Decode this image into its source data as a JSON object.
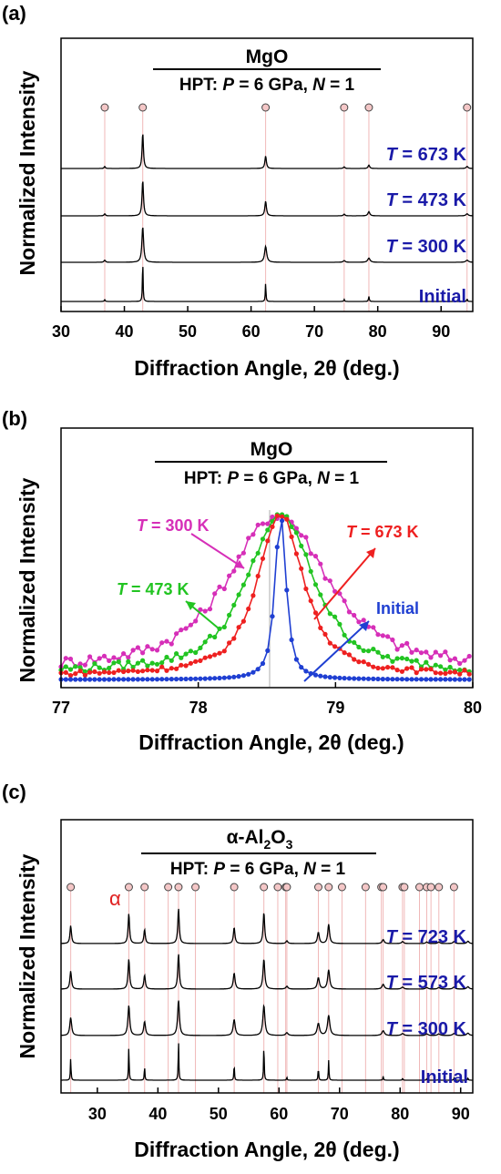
{
  "chart_data": [
    {
      "type": "line",
      "panel": "(a)",
      "title": "MgO",
      "subtitle": {
        "prefix": "HPT: ",
        "p_var": "P",
        "p_val": " = 6 GPa, ",
        "n_var": "N",
        "n_val": " = 1"
      },
      "xlabel": "Diffraction Angle, 2θ (deg.)",
      "ylabel": "Normalized Intensity",
      "xlim": [
        30,
        95
      ],
      "xticks": [
        30,
        40,
        50,
        60,
        70,
        80,
        90
      ],
      "reference_peaks": [
        36.9,
        42.9,
        62.3,
        74.7,
        78.6,
        94.1
      ],
      "series": [
        {
          "name": "Initial",
          "label_text": "Initial",
          "color": "#1a1aa8",
          "peaks": [
            [
              36.9,
              0.05,
              0.15
            ],
            [
              42.9,
              1.0,
              0.12
            ],
            [
              62.3,
              0.45,
              0.12
            ],
            [
              74.7,
              0.05,
              0.15
            ],
            [
              78.6,
              0.12,
              0.15
            ],
            [
              94.1,
              0.06,
              0.15
            ]
          ]
        },
        {
          "name": "T = 300 K",
          "label_var": "T",
          "label_val": " = 300 K",
          "color": "#1a1aa8",
          "peaks": [
            [
              36.9,
              0.05,
              0.3
            ],
            [
              42.9,
              0.85,
              0.32
            ],
            [
              62.3,
              0.38,
              0.4
            ],
            [
              74.7,
              0.04,
              0.4
            ],
            [
              78.6,
              0.1,
              0.45
            ],
            [
              94.1,
              0.05,
              0.5
            ]
          ]
        },
        {
          "name": "T = 473 K",
          "label_var": "T",
          "label_val": " = 473 K",
          "color": "#1a1aa8",
          "peaks": [
            [
              36.9,
              0.05,
              0.25
            ],
            [
              42.9,
              0.85,
              0.27
            ],
            [
              62.3,
              0.35,
              0.3
            ],
            [
              74.7,
              0.04,
              0.3
            ],
            [
              78.6,
              0.1,
              0.35
            ],
            [
              94.1,
              0.05,
              0.4
            ]
          ]
        },
        {
          "name": "T = 673 K",
          "label_var": "T",
          "label_val": " = 673 K",
          "color": "#1a1aa8",
          "peaks": [
            [
              36.9,
              0.05,
              0.22
            ],
            [
              42.9,
              0.85,
              0.25
            ],
            [
              62.3,
              0.3,
              0.28
            ],
            [
              74.7,
              0.04,
              0.28
            ],
            [
              78.6,
              0.08,
              0.3
            ],
            [
              94.1,
              0.05,
              0.35
            ]
          ]
        }
      ]
    },
    {
      "type": "line",
      "panel": "(b)",
      "title": "MgO",
      "subtitle": {
        "prefix": "HPT: ",
        "p_var": "P",
        "p_val": " = 6 GPa, ",
        "n_var": "N",
        "n_val": " = 1"
      },
      "xlabel": "Diffraction Angle, 2θ (deg.)",
      "ylabel": "Normalized Intensity",
      "xlim": [
        77,
        80
      ],
      "xticks": [
        77,
        78,
        79,
        80
      ],
      "series": [
        {
          "name": "Initial",
          "label_text": "Initial",
          "color": "#1f3fd2",
          "center": 78.6,
          "fwhm": 0.1,
          "base": 0.01,
          "noise": 0.0,
          "tail": 0.05
        },
        {
          "name": "T = 300 K",
          "label_var": "T",
          "label_val": " = 300 K",
          "color": "#d62fb8",
          "center": 78.58,
          "fwhm": 0.9,
          "base": 0.06,
          "noise": 0.035,
          "tail": 0.25
        },
        {
          "name": "T = 473 K",
          "label_var": "T",
          "label_val": " = 473 K",
          "color": "#22c422",
          "center": 78.6,
          "fwhm": 0.6,
          "base": 0.05,
          "noise": 0.025,
          "tail": 0.15
        },
        {
          "name": "T = 673 K",
          "label_var": "T",
          "label_val": " = 673 K",
          "color": "#ee2020",
          "center": 78.6,
          "fwhm": 0.42,
          "base": 0.035,
          "noise": 0.015,
          "tail": 0.1
        }
      ]
    },
    {
      "type": "line",
      "panel": "(c)",
      "title": {
        "prefix": "α-Al",
        "sub1": "2",
        "mid": "O",
        "sub2": "3"
      },
      "subtitle": {
        "prefix": "HPT: ",
        "p_var": "P",
        "p_val": " = 6 GPa, ",
        "n_var": "N",
        "n_val": " = 1"
      },
      "alpha_marker": "α",
      "xlabel": "Diffraction Angle, 2θ (deg.)",
      "ylabel": "Normalized Intensity",
      "xlim": [
        24,
        92
      ],
      "xticks": [
        30,
        40,
        50,
        60,
        70,
        80,
        90
      ],
      "reference_peaks": [
        25.6,
        35.2,
        37.8,
        41.7,
        43.4,
        46.2,
        52.6,
        57.5,
        59.8,
        61.1,
        61.3,
        66.5,
        68.2,
        70.4,
        74.3,
        76.9,
        77.2,
        80.4,
        80.7,
        83.2,
        84.4,
        85.1,
        86.4,
        88.9
      ],
      "series": [
        {
          "name": "Initial",
          "label_text": "Initial",
          "color": "#1a1aa8",
          "peaks": [
            [
              25.6,
              0.55,
              0.12
            ],
            [
              35.2,
              0.85,
              0.12
            ],
            [
              37.8,
              0.35,
              0.12
            ],
            [
              43.4,
              1.0,
              0.12
            ],
            [
              52.6,
              0.4,
              0.12
            ],
            [
              57.5,
              0.9,
              0.12
            ],
            [
              61.3,
              0.08,
              0.12
            ],
            [
              66.5,
              0.3,
              0.12
            ],
            [
              68.2,
              0.5,
              0.12
            ],
            [
              77.2,
              0.1,
              0.12
            ],
            [
              80.4,
              0.05,
              0.12
            ],
            [
              84.4,
              0.04,
              0.12
            ],
            [
              86.4,
              0.04,
              0.12
            ],
            [
              88.9,
              0.05,
              0.12
            ],
            [
              91.2,
              0.06,
              0.12
            ]
          ]
        },
        {
          "name": "T = 300 K",
          "label_var": "T",
          "label_val": " = 300 K",
          "color": "#1a1aa8",
          "peaks": [
            [
              25.6,
              0.45,
              0.35
            ],
            [
              35.2,
              0.75,
              0.35
            ],
            [
              37.8,
              0.35,
              0.35
            ],
            [
              43.4,
              0.88,
              0.35
            ],
            [
              52.6,
              0.4,
              0.4
            ],
            [
              57.5,
              0.75,
              0.4
            ],
            [
              61.3,
              0.07,
              0.45
            ],
            [
              66.5,
              0.3,
              0.45
            ],
            [
              68.2,
              0.5,
              0.45
            ],
            [
              77.2,
              0.12,
              0.5
            ],
            [
              80.4,
              0.05,
              0.5
            ],
            [
              84.4,
              0.04,
              0.5
            ],
            [
              86.4,
              0.04,
              0.5
            ],
            [
              88.9,
              0.05,
              0.5
            ],
            [
              91.2,
              0.06,
              0.5
            ]
          ]
        },
        {
          "name": "T = 573 K",
          "label_var": "T",
          "label_val": " = 573 K",
          "color": "#1a1aa8",
          "peaks": [
            [
              25.6,
              0.45,
              0.3
            ],
            [
              35.2,
              0.75,
              0.3
            ],
            [
              37.8,
              0.35,
              0.3
            ],
            [
              43.4,
              0.88,
              0.3
            ],
            [
              52.6,
              0.4,
              0.35
            ],
            [
              57.5,
              0.75,
              0.35
            ],
            [
              61.3,
              0.07,
              0.4
            ],
            [
              66.5,
              0.28,
              0.4
            ],
            [
              68.2,
              0.48,
              0.4
            ],
            [
              77.2,
              0.12,
              0.45
            ],
            [
              80.4,
              0.05,
              0.45
            ],
            [
              84.4,
              0.04,
              0.45
            ],
            [
              86.4,
              0.04,
              0.45
            ],
            [
              88.9,
              0.05,
              0.45
            ],
            [
              91.2,
              0.06,
              0.45
            ]
          ]
        },
        {
          "name": "T = 723 K",
          "label_var": "T",
          "label_val": " = 723 K",
          "color": "#1a1aa8",
          "peaks": [
            [
              25.6,
              0.45,
              0.28
            ],
            [
              35.2,
              0.75,
              0.28
            ],
            [
              37.8,
              0.35,
              0.28
            ],
            [
              43.4,
              0.88,
              0.28
            ],
            [
              52.6,
              0.4,
              0.3
            ],
            [
              57.5,
              0.78,
              0.3
            ],
            [
              61.3,
              0.07,
              0.35
            ],
            [
              66.5,
              0.28,
              0.35
            ],
            [
              68.2,
              0.48,
              0.35
            ],
            [
              77.2,
              0.1,
              0.4
            ],
            [
              80.4,
              0.05,
              0.4
            ],
            [
              84.4,
              0.04,
              0.4
            ],
            [
              86.4,
              0.04,
              0.4
            ],
            [
              88.9,
              0.05,
              0.4
            ],
            [
              91.2,
              0.06,
              0.4
            ]
          ]
        }
      ]
    }
  ],
  "colors": {
    "peak_marker_fill": "#f4c7c7",
    "peak_line": "#f0b8b8",
    "alpha_marker": "#e02020",
    "label_blue": "#1a1aa8"
  }
}
